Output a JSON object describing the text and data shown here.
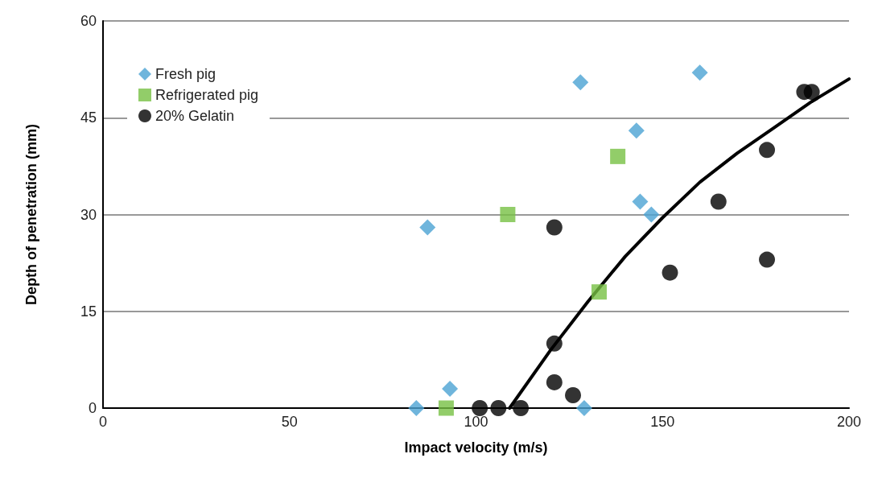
{
  "chart_data": {
    "type": "scatter",
    "xlabel": "Impact velocity (m/s)",
    "ylabel": "Depth of penetration (mm)",
    "xlim": [
      0,
      200
    ],
    "xticks": [
      0,
      50,
      100,
      150,
      200
    ],
    "ylim": [
      0,
      60
    ],
    "yticks": [
      0,
      15,
      30,
      45,
      60
    ],
    "grid": "y",
    "legend": "top left",
    "series": [
      {
        "name": "Fresh pig",
        "color": "#4ba3d3",
        "marker": "diamond",
        "x": [
          84,
          87,
          93,
          128,
          129,
          143,
          144,
          147,
          160
        ],
        "values": [
          0,
          28,
          3,
          50.5,
          0,
          43,
          32,
          30,
          52
        ]
      },
      {
        "name": "Refrigerated pig",
        "color": "#77c043",
        "marker": "square",
        "x": [
          92,
          108.5,
          133,
          138
        ],
        "values": [
          0,
          30,
          18,
          39
        ]
      },
      {
        "name": "20% Gelatin",
        "color": "#000000",
        "marker": "circle",
        "x": [
          101,
          106,
          112,
          121,
          121,
          121,
          126,
          152,
          165,
          178,
          178,
          188,
          190
        ],
        "values": [
          0,
          0,
          0,
          28,
          10,
          4,
          2,
          21,
          32,
          40,
          23,
          49,
          49
        ]
      },
      {
        "type": "line",
        "color": "#000000",
        "marker": "none",
        "line_style": "solid",
        "x": [
          109,
          120,
          130,
          140,
          150,
          160,
          170,
          180,
          190,
          200
        ],
        "values": [
          0,
          9,
          16.5,
          23.5,
          29.5,
          35,
          39.5,
          43.5,
          47.5,
          51
        ]
      }
    ]
  }
}
